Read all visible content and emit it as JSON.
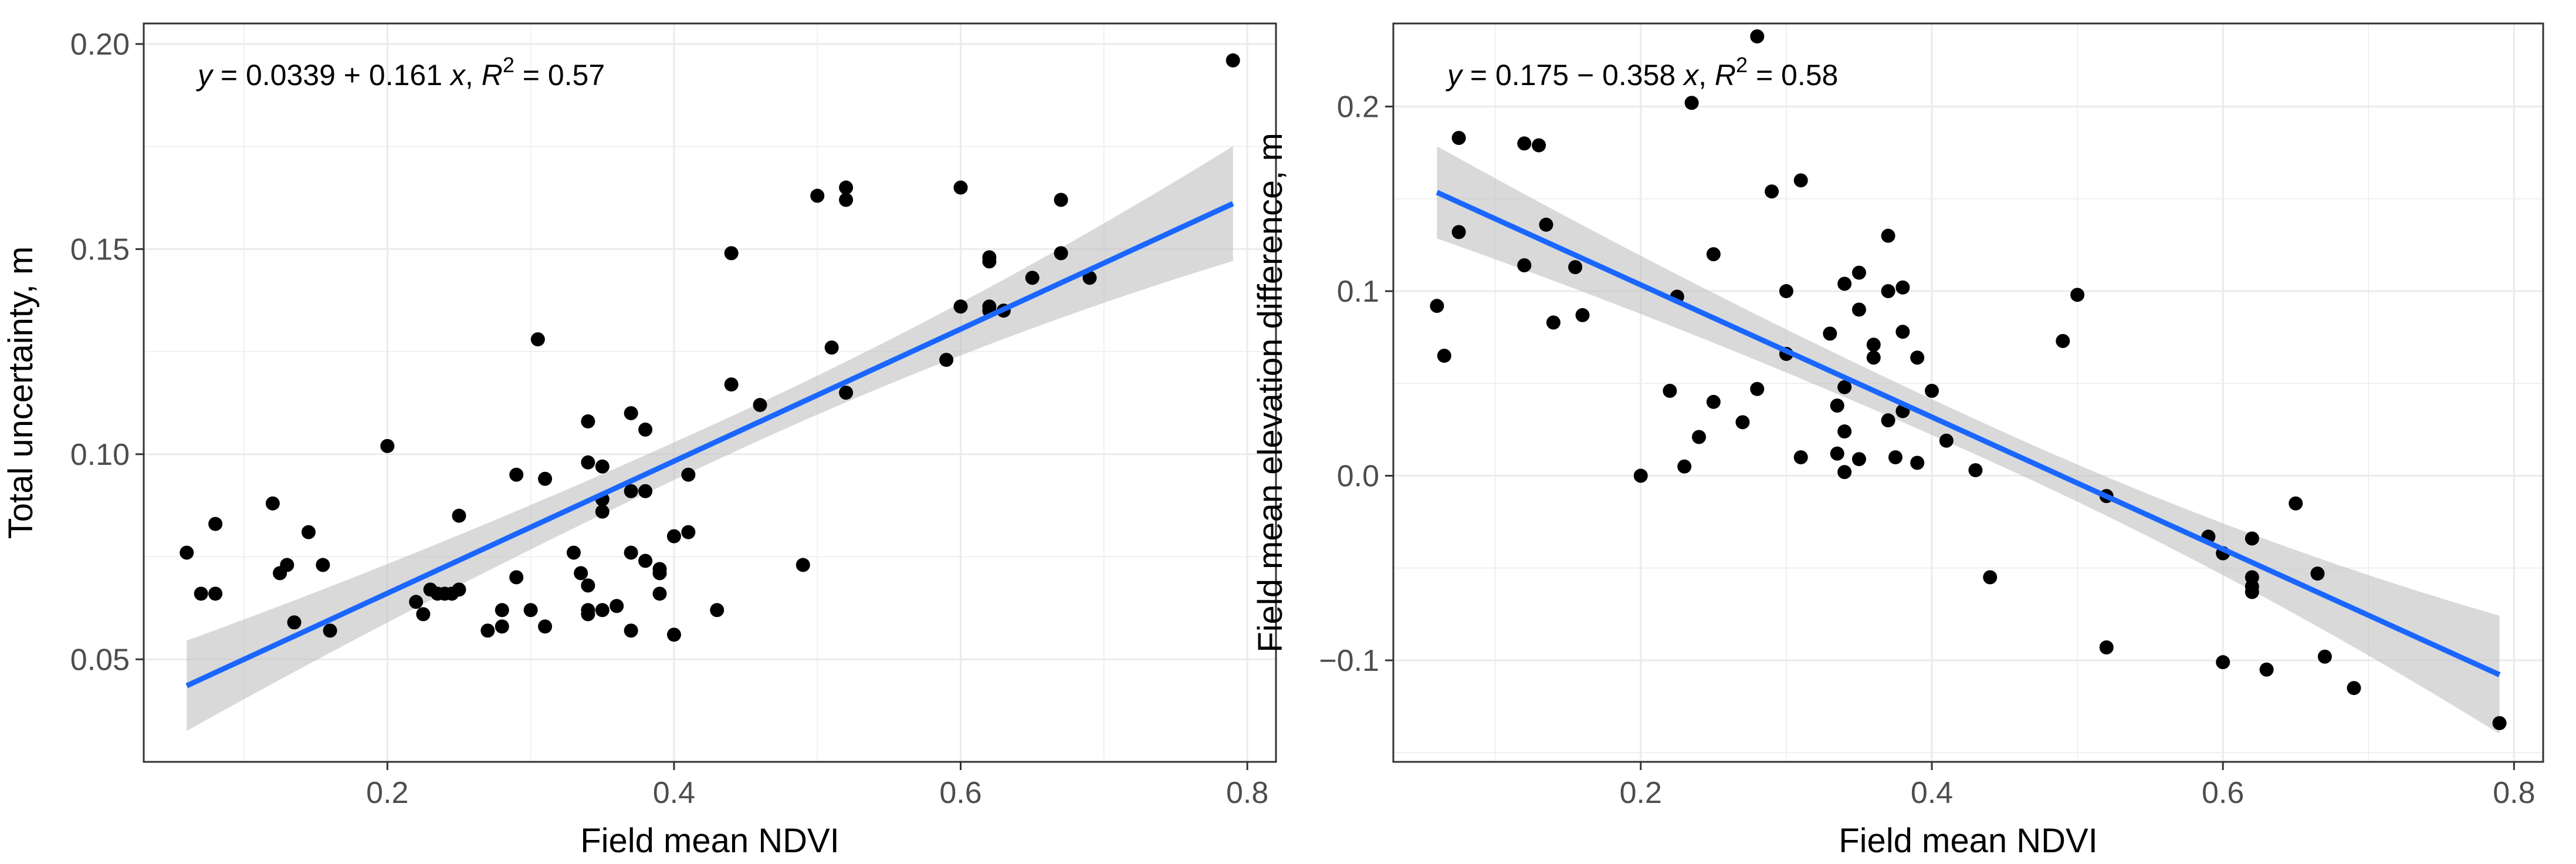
{
  "chart_data": [
    {
      "type": "scatter",
      "xlabel": "Field mean NDVI",
      "ylabel": "Total uncertainty, m",
      "xlim": [
        0.03,
        0.82
      ],
      "ylim": [
        0.025,
        0.205
      ],
      "xticks": [
        0.2,
        0.4,
        0.6,
        0.8
      ],
      "xtick_labels": [
        "0.2",
        "0.4",
        "0.6",
        "0.8"
      ],
      "yticks": [
        0.05,
        0.1,
        0.15,
        0.2
      ],
      "ytick_labels": [
        "0.05",
        "0.10",
        "0.15",
        "0.20"
      ],
      "equation": {
        "prefix": "y = 0.0339 + 0.161 x,",
        "r2_label": "R",
        "r2_exp": "2",
        "r2_value": " = 0.57"
      },
      "fit": {
        "intercept": 0.0339,
        "slope": 0.161,
        "x_range": [
          0.06,
          0.79
        ],
        "ci_start": 0.011,
        "ci_mid": 0.0045,
        "ci_end": 0.014
      },
      "grid": true,
      "colors": {
        "points": "#000000",
        "line": "#1a66ff",
        "band": "#bfbfbf",
        "grid": "#ebebeb",
        "panel_border": "#333333"
      },
      "points": [
        {
          "x": 0.06,
          "y": 0.076
        },
        {
          "x": 0.07,
          "y": 0.066
        },
        {
          "x": 0.08,
          "y": 0.083
        },
        {
          "x": 0.08,
          "y": 0.066
        },
        {
          "x": 0.12,
          "y": 0.088
        },
        {
          "x": 0.125,
          "y": 0.071
        },
        {
          "x": 0.13,
          "y": 0.073
        },
        {
          "x": 0.135,
          "y": 0.059
        },
        {
          "x": 0.145,
          "y": 0.081
        },
        {
          "x": 0.155,
          "y": 0.073
        },
        {
          "x": 0.16,
          "y": 0.057
        },
        {
          "x": 0.2,
          "y": 0.102
        },
        {
          "x": 0.22,
          "y": 0.064
        },
        {
          "x": 0.225,
          "y": 0.061
        },
        {
          "x": 0.23,
          "y": 0.067
        },
        {
          "x": 0.235,
          "y": 0.066
        },
        {
          "x": 0.24,
          "y": 0.066
        },
        {
          "x": 0.245,
          "y": 0.066
        },
        {
          "x": 0.25,
          "y": 0.085
        },
        {
          "x": 0.25,
          "y": 0.067
        },
        {
          "x": 0.27,
          "y": 0.057
        },
        {
          "x": 0.28,
          "y": 0.058
        },
        {
          "x": 0.28,
          "y": 0.062
        },
        {
          "x": 0.29,
          "y": 0.095
        },
        {
          "x": 0.29,
          "y": 0.07
        },
        {
          "x": 0.3,
          "y": 0.062
        },
        {
          "x": 0.305,
          "y": 0.128
        },
        {
          "x": 0.31,
          "y": 0.094
        },
        {
          "x": 0.31,
          "y": 0.058
        },
        {
          "x": 0.33,
          "y": 0.076
        },
        {
          "x": 0.335,
          "y": 0.071
        },
        {
          "x": 0.34,
          "y": 0.108
        },
        {
          "x": 0.34,
          "y": 0.098
        },
        {
          "x": 0.34,
          "y": 0.068
        },
        {
          "x": 0.34,
          "y": 0.062
        },
        {
          "x": 0.34,
          "y": 0.061
        },
        {
          "x": 0.35,
          "y": 0.097
        },
        {
          "x": 0.35,
          "y": 0.089
        },
        {
          "x": 0.35,
          "y": 0.086
        },
        {
          "x": 0.35,
          "y": 0.062
        },
        {
          "x": 0.36,
          "y": 0.063
        },
        {
          "x": 0.37,
          "y": 0.11
        },
        {
          "x": 0.37,
          "y": 0.091
        },
        {
          "x": 0.37,
          "y": 0.076
        },
        {
          "x": 0.37,
          "y": 0.057
        },
        {
          "x": 0.38,
          "y": 0.106
        },
        {
          "x": 0.38,
          "y": 0.091
        },
        {
          "x": 0.38,
          "y": 0.074
        },
        {
          "x": 0.39,
          "y": 0.072
        },
        {
          "x": 0.39,
          "y": 0.071
        },
        {
          "x": 0.39,
          "y": 0.066
        },
        {
          "x": 0.4,
          "y": 0.08
        },
        {
          "x": 0.4,
          "y": 0.056
        },
        {
          "x": 0.41,
          "y": 0.095
        },
        {
          "x": 0.41,
          "y": 0.081
        },
        {
          "x": 0.43,
          "y": 0.062
        },
        {
          "x": 0.44,
          "y": 0.149
        },
        {
          "x": 0.44,
          "y": 0.117
        },
        {
          "x": 0.46,
          "y": 0.112
        },
        {
          "x": 0.49,
          "y": 0.073
        },
        {
          "x": 0.5,
          "y": 0.163
        },
        {
          "x": 0.51,
          "y": 0.126
        },
        {
          "x": 0.52,
          "y": 0.165
        },
        {
          "x": 0.52,
          "y": 0.162
        },
        {
          "x": 0.52,
          "y": 0.115
        },
        {
          "x": 0.59,
          "y": 0.123
        },
        {
          "x": 0.6,
          "y": 0.165
        },
        {
          "x": 0.6,
          "y": 0.136
        },
        {
          "x": 0.62,
          "y": 0.148
        },
        {
          "x": 0.62,
          "y": 0.147
        },
        {
          "x": 0.62,
          "y": 0.136
        },
        {
          "x": 0.62,
          "y": 0.135
        },
        {
          "x": 0.63,
          "y": 0.135
        },
        {
          "x": 0.65,
          "y": 0.143
        },
        {
          "x": 0.67,
          "y": 0.162
        },
        {
          "x": 0.67,
          "y": 0.149
        },
        {
          "x": 0.69,
          "y": 0.143
        },
        {
          "x": 0.79,
          "y": 0.196
        }
      ]
    },
    {
      "type": "scatter",
      "xlabel": "Field mean NDVI",
      "ylabel": "Field mean elevation difference, m",
      "xlim": [
        0.03,
        0.82
      ],
      "ylim": [
        -0.155,
        0.245
      ],
      "xticks": [
        0.2,
        0.4,
        0.6,
        0.8
      ],
      "xtick_labels": [
        "0.2",
        "0.4",
        "0.6",
        "0.8"
      ],
      "yticks": [
        -0.1,
        0.0,
        0.1,
        0.2
      ],
      "ytick_labels": [
        "−0.1",
        "0.0",
        "0.1",
        "0.2"
      ],
      "equation": {
        "prefix": "y = 0.175 − 0.358 x,",
        "r2_label": "R",
        "r2_exp": "2",
        "r2_value": " = 0.58"
      },
      "fit": {
        "intercept": 0.175,
        "slope": -0.358,
        "x_range": [
          0.06,
          0.79
        ],
        "ci_start": 0.025,
        "ci_mid": 0.0095,
        "ci_end": 0.032
      },
      "grid": true,
      "colors": {
        "points": "#000000",
        "line": "#1a66ff",
        "band": "#bfbfbf",
        "grid": "#ebebeb",
        "panel_border": "#333333"
      },
      "points": [
        {
          "x": 0.06,
          "y": 0.092
        },
        {
          "x": 0.065,
          "y": 0.065
        },
        {
          "x": 0.075,
          "y": 0.183
        },
        {
          "x": 0.075,
          "y": 0.132
        },
        {
          "x": 0.12,
          "y": 0.18
        },
        {
          "x": 0.12,
          "y": 0.114
        },
        {
          "x": 0.13,
          "y": 0.179
        },
        {
          "x": 0.135,
          "y": 0.136
        },
        {
          "x": 0.14,
          "y": 0.083
        },
        {
          "x": 0.155,
          "y": 0.113
        },
        {
          "x": 0.16,
          "y": 0.087
        },
        {
          "x": 0.2,
          "y": 0.0
        },
        {
          "x": 0.22,
          "y": 0.046
        },
        {
          "x": 0.225,
          "y": 0.097
        },
        {
          "x": 0.23,
          "y": 0.005
        },
        {
          "x": 0.235,
          "y": 0.202
        },
        {
          "x": 0.24,
          "y": 0.021
        },
        {
          "x": 0.25,
          "y": 0.12
        },
        {
          "x": 0.25,
          "y": 0.04
        },
        {
          "x": 0.27,
          "y": 0.029
        },
        {
          "x": 0.28,
          "y": 0.238
        },
        {
          "x": 0.28,
          "y": 0.047
        },
        {
          "x": 0.29,
          "y": 0.154
        },
        {
          "x": 0.3,
          "y": 0.1
        },
        {
          "x": 0.3,
          "y": 0.066
        },
        {
          "x": 0.31,
          "y": 0.16
        },
        {
          "x": 0.31,
          "y": 0.01
        },
        {
          "x": 0.33,
          "y": 0.077
        },
        {
          "x": 0.335,
          "y": 0.038
        },
        {
          "x": 0.335,
          "y": 0.012
        },
        {
          "x": 0.34,
          "y": 0.104
        },
        {
          "x": 0.34,
          "y": 0.048
        },
        {
          "x": 0.34,
          "y": 0.024
        },
        {
          "x": 0.34,
          "y": 0.002
        },
        {
          "x": 0.35,
          "y": 0.11
        },
        {
          "x": 0.35,
          "y": 0.09
        },
        {
          "x": 0.35,
          "y": 0.009
        },
        {
          "x": 0.36,
          "y": 0.071
        },
        {
          "x": 0.36,
          "y": 0.064
        },
        {
          "x": 0.37,
          "y": 0.13
        },
        {
          "x": 0.37,
          "y": 0.1
        },
        {
          "x": 0.37,
          "y": 0.03
        },
        {
          "x": 0.375,
          "y": 0.01
        },
        {
          "x": 0.38,
          "y": 0.102
        },
        {
          "x": 0.38,
          "y": 0.078
        },
        {
          "x": 0.38,
          "y": 0.035
        },
        {
          "x": 0.39,
          "y": 0.064
        },
        {
          "x": 0.39,
          "y": 0.007
        },
        {
          "x": 0.4,
          "y": 0.046
        },
        {
          "x": 0.41,
          "y": 0.019
        },
        {
          "x": 0.43,
          "y": 0.003
        },
        {
          "x": 0.44,
          "y": -0.055
        },
        {
          "x": 0.49,
          "y": 0.073
        },
        {
          "x": 0.5,
          "y": 0.098
        },
        {
          "x": 0.52,
          "y": -0.011
        },
        {
          "x": 0.52,
          "y": -0.093
        },
        {
          "x": 0.59,
          "y": -0.033
        },
        {
          "x": 0.6,
          "y": -0.042
        },
        {
          "x": 0.6,
          "y": -0.101
        },
        {
          "x": 0.62,
          "y": -0.034
        },
        {
          "x": 0.62,
          "y": -0.055
        },
        {
          "x": 0.62,
          "y": -0.06
        },
        {
          "x": 0.62,
          "y": -0.063
        },
        {
          "x": 0.63,
          "y": -0.105
        },
        {
          "x": 0.65,
          "y": -0.015
        },
        {
          "x": 0.665,
          "y": -0.053
        },
        {
          "x": 0.67,
          "y": -0.098
        },
        {
          "x": 0.69,
          "y": -0.115
        },
        {
          "x": 0.79,
          "y": -0.134
        }
      ]
    }
  ]
}
